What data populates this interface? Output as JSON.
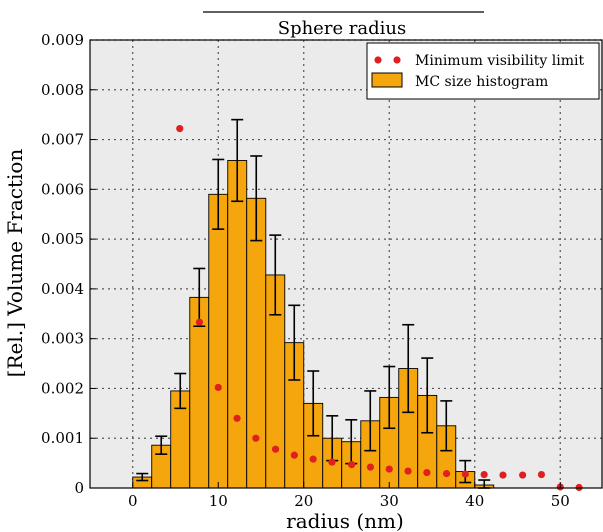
{
  "chart_data": {
    "type": "bar",
    "title": "Sphere radius",
    "xlabel": "radius (nm)",
    "ylabel": "[Rel.] Volume Fraction",
    "xlim": [
      -5,
      55
    ],
    "ylim": [
      0,
      0.009
    ],
    "xticks": [
      "0",
      "10",
      "20",
      "30",
      "40",
      "50"
    ],
    "xtick_values": [
      0,
      10,
      20,
      30,
      40,
      50
    ],
    "yticks": [
      "0",
      "0.001",
      "0.002",
      "0.003",
      "0.004",
      "0.005",
      "0.006",
      "0.007",
      "0.008",
      "0.009"
    ],
    "ytick_values": [
      0,
      0.001,
      0.002,
      0.003,
      0.004,
      0.005,
      0.006,
      0.007,
      0.008,
      0.009
    ],
    "grid": true,
    "legend_position": "top-right",
    "legend": {
      "dots_label": "Minimum visibility limit",
      "bars_label": "MC size histogram"
    },
    "colors": {
      "bar_fill": "#f5a60c",
      "bar_edge": "#000000",
      "dot": "#e02020",
      "plot_bg": "#ebebeb"
    },
    "bins": [
      {
        "x0": 0.0,
        "x1": 2.22,
        "value": 0.00022,
        "err": 7e-05
      },
      {
        "x0": 2.22,
        "x1": 4.44,
        "value": 0.00086,
        "err": 0.00018
      },
      {
        "x0": 4.44,
        "x1": 6.67,
        "value": 0.00195,
        "err": 0.00035
      },
      {
        "x0": 6.67,
        "x1": 8.89,
        "value": 0.00383,
        "err": 0.00058
      },
      {
        "x0": 8.89,
        "x1": 11.11,
        "value": 0.0059,
        "err": 0.0007
      },
      {
        "x0": 11.11,
        "x1": 13.33,
        "value": 0.00658,
        "err": 0.00082
      },
      {
        "x0": 13.33,
        "x1": 15.56,
        "value": 0.00582,
        "err": 0.00085
      },
      {
        "x0": 15.56,
        "x1": 17.78,
        "value": 0.00428,
        "err": 0.0008
      },
      {
        "x0": 17.78,
        "x1": 20.0,
        "value": 0.00292,
        "err": 0.00075
      },
      {
        "x0": 20.0,
        "x1": 22.22,
        "value": 0.0017,
        "err": 0.00065
      },
      {
        "x0": 22.22,
        "x1": 24.44,
        "value": 0.001,
        "err": 0.00045
      },
      {
        "x0": 24.44,
        "x1": 26.67,
        "value": 0.00093,
        "err": 0.00044
      },
      {
        "x0": 26.67,
        "x1": 28.89,
        "value": 0.00135,
        "err": 0.0006
      },
      {
        "x0": 28.89,
        "x1": 31.11,
        "value": 0.00182,
        "err": 0.00062
      },
      {
        "x0": 31.11,
        "x1": 33.33,
        "value": 0.0024,
        "err": 0.00088
      },
      {
        "x0": 33.33,
        "x1": 35.56,
        "value": 0.00186,
        "err": 0.00075
      },
      {
        "x0": 35.56,
        "x1": 37.78,
        "value": 0.00125,
        "err": 0.0005
      },
      {
        "x0": 37.78,
        "x1": 40.0,
        "value": 0.00033,
        "err": 0.00022
      },
      {
        "x0": 40.0,
        "x1": 42.22,
        "value": 6e-05,
        "err": 0.0001
      }
    ],
    "series": [
      {
        "name": "Minimum visibility limit",
        "type": "scatter",
        "x": [
          5.5,
          7.8,
          10.0,
          12.2,
          14.4,
          16.7,
          18.9,
          21.1,
          23.3,
          25.6,
          27.8,
          30.0,
          32.2,
          34.4,
          36.7,
          38.9,
          41.1,
          43.3,
          45.6,
          47.8,
          50.0,
          52.2
        ],
        "y": [
          0.00722,
          0.00333,
          0.00202,
          0.0014,
          0.001,
          0.00078,
          0.00066,
          0.00058,
          0.00052,
          0.00047,
          0.00042,
          0.00038,
          0.00034,
          0.00031,
          0.00029,
          0.00028,
          0.00027,
          0.00026,
          0.00026,
          0.00027,
          2e-05,
          1e-05
        ]
      }
    ]
  }
}
